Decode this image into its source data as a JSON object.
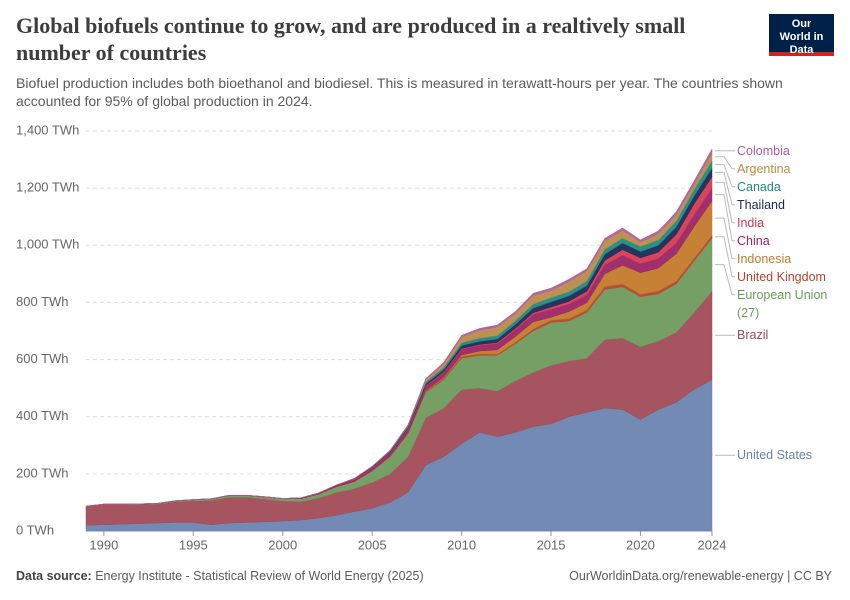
{
  "header": {
    "title": "Global biofuels continue to grow, and are produced in a realtively small number of countries",
    "subtitle": "Biofuel production includes both bioethanol and biodiesel. This is measured in terawatt-hours per year. The countries shown accounted for 95% of global production in 2024.",
    "logo": "Our World in Data"
  },
  "chart_data": {
    "type": "area",
    "stacked": true,
    "grid": true,
    "x": [
      1989,
      1990,
      1991,
      1992,
      1993,
      1994,
      1995,
      1996,
      1997,
      1998,
      1999,
      2000,
      2001,
      2002,
      2003,
      2004,
      2005,
      2006,
      2007,
      2008,
      2009,
      2010,
      2011,
      2012,
      2013,
      2014,
      2015,
      2016,
      2017,
      2018,
      2019,
      2020,
      2021,
      2022,
      2023,
      2024
    ],
    "xlim": [
      1989,
      2024
    ],
    "xticks": [
      1990,
      1995,
      2000,
      2005,
      2010,
      2015,
      2020,
      2024
    ],
    "ylim": [
      0,
      1400
    ],
    "yticks": [
      {
        "value": 0,
        "label": "0 TWh"
      },
      {
        "value": 200,
        "label": "200 TWh"
      },
      {
        "value": 400,
        "label": "400 TWh"
      },
      {
        "value": 600,
        "label": "600 TWh"
      },
      {
        "value": 800,
        "label": "800 TWh"
      },
      {
        "value": 1000,
        "label": "1,000 TWh"
      },
      {
        "value": 1200,
        "label": "1,200 TWh"
      },
      {
        "value": 1400,
        "label": "1,400 TWh"
      }
    ],
    "series": [
      {
        "name": "United States",
        "color": "#6b84b0",
        "values": [
          20,
          22,
          24,
          26,
          28,
          30,
          30,
          22,
          28,
          30,
          32,
          35,
          38,
          45,
          55,
          68,
          80,
          100,
          135,
          231,
          260,
          305,
          345,
          330,
          345,
          365,
          375,
          400,
          415,
          430,
          425,
          390,
          425,
          450,
          495,
          530
        ]
      },
      {
        "name": "Brazil",
        "color": "#a04b57",
        "values": [
          65,
          70,
          68,
          67,
          66,
          72,
          75,
          85,
          90,
          88,
          80,
          70,
          65,
          70,
          80,
          80,
          90,
          100,
          125,
          165,
          170,
          190,
          155,
          160,
          180,
          190,
          205,
          195,
          190,
          240,
          250,
          255,
          240,
          245,
          270,
          310
        ]
      },
      {
        "name": "European Union (27)",
        "color": "#6f9a5e",
        "values": [
          1,
          1,
          1,
          1,
          2,
          3,
          4,
          5,
          6,
          6,
          7,
          8,
          10,
          14,
          20,
          25,
          40,
          60,
          80,
          90,
          100,
          110,
          115,
          125,
          130,
          145,
          150,
          140,
          160,
          175,
          180,
          175,
          165,
          170,
          180,
          185
        ]
      },
      {
        "name": "United Kingdom",
        "color": "#b8432c",
        "values": [
          0,
          0,
          0,
          0,
          0,
          0,
          0,
          0,
          0,
          0,
          0,
          0,
          0,
          0,
          0,
          0,
          1,
          2,
          3,
          4,
          5,
          6,
          5,
          4,
          5,
          7,
          8,
          8,
          9,
          10,
          10,
          9,
          10,
          10,
          10,
          10
        ]
      },
      {
        "name": "Indonesia",
        "color": "#c47a2c",
        "values": [
          0,
          0,
          0,
          0,
          0,
          0,
          0,
          0,
          0,
          0,
          0,
          0,
          0,
          0,
          0,
          0,
          0,
          0,
          1,
          2,
          3,
          5,
          10,
          15,
          20,
          25,
          10,
          25,
          25,
          45,
          65,
          75,
          80,
          95,
          110,
          120
        ]
      },
      {
        "name": "China",
        "color": "#9a2563",
        "values": [
          0,
          0,
          0,
          0,
          0,
          0,
          0,
          0,
          0,
          0,
          0,
          0,
          2,
          3,
          5,
          8,
          10,
          12,
          14,
          16,
          18,
          20,
          20,
          22,
          24,
          26,
          28,
          26,
          28,
          32,
          35,
          32,
          34,
          38,
          42,
          45
        ]
      },
      {
        "name": "India",
        "color": "#d63a55",
        "values": [
          1,
          1,
          1,
          1,
          1,
          1,
          1,
          1,
          1,
          1,
          1,
          1,
          1,
          1,
          1,
          2,
          2,
          2,
          2,
          2,
          2,
          3,
          3,
          4,
          5,
          6,
          8,
          10,
          12,
          15,
          20,
          20,
          22,
          30,
          38,
          40
        ]
      },
      {
        "name": "Thailand",
        "color": "#1b2a55",
        "values": [
          0,
          0,
          0,
          0,
          0,
          0,
          0,
          0,
          0,
          0,
          0,
          0,
          0,
          0,
          0,
          1,
          1,
          2,
          3,
          5,
          7,
          10,
          11,
          12,
          14,
          16,
          18,
          19,
          20,
          22,
          23,
          22,
          24,
          26,
          28,
          30
        ]
      },
      {
        "name": "Canada",
        "color": "#1f8a80",
        "values": [
          0,
          0,
          0,
          0,
          0,
          0,
          0,
          0,
          0,
          0,
          0,
          0,
          0,
          0,
          0,
          0,
          2,
          3,
          5,
          7,
          8,
          10,
          11,
          12,
          13,
          14,
          15,
          15,
          16,
          17,
          17,
          18,
          19,
          21,
          23,
          25
        ]
      },
      {
        "name": "Argentina",
        "color": "#b98a4a",
        "values": [
          0,
          0,
          0,
          0,
          0,
          0,
          0,
          0,
          0,
          0,
          0,
          0,
          0,
          0,
          0,
          0,
          0,
          0,
          1,
          8,
          12,
          20,
          28,
          30,
          25,
          30,
          25,
          35,
          35,
          30,
          28,
          15,
          22,
          22,
          18,
          30
        ]
      },
      {
        "name": "Colombia",
        "color": "#b05ea3",
        "values": [
          0,
          0,
          0,
          0,
          0,
          0,
          0,
          0,
          0,
          0,
          0,
          0,
          0,
          0,
          0,
          0,
          1,
          2,
          3,
          4,
          5,
          6,
          6,
          7,
          7,
          8,
          8,
          8,
          8,
          8,
          8,
          8,
          9,
          10,
          11,
          12
        ]
      }
    ]
  },
  "footer": {
    "source_label": "Data source:",
    "source": "Energy Institute - Statistical Review of World Energy (2025)",
    "url": "OurWorldinData.org/renewable-energy | CC BY"
  }
}
